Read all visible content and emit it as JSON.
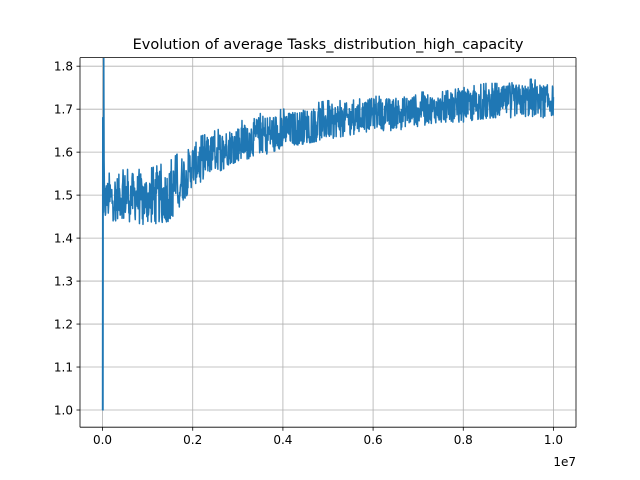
{
  "chart_data": {
    "type": "line",
    "title": "Evolution of average Tasks_distribution_high_capacity",
    "xlabel": "",
    "ylabel": "",
    "x_scale_note": "1e7",
    "xlim": [
      -0.05,
      1.05
    ],
    "ylim": [
      0.96,
      1.82
    ],
    "x_ticks": [
      0.0,
      0.2,
      0.4,
      0.6,
      0.8,
      1.0
    ],
    "x_tick_labels": [
      "0.0",
      "0.2",
      "0.4",
      "0.6",
      "0.8",
      "1.0"
    ],
    "y_ticks": [
      1.0,
      1.1,
      1.2,
      1.3,
      1.4,
      1.5,
      1.6,
      1.7,
      1.8
    ],
    "y_tick_labels": [
      "1.0",
      "1.1",
      "1.2",
      "1.3",
      "1.4",
      "1.5",
      "1.6",
      "1.7",
      "1.8"
    ],
    "grid": true,
    "line_color": "#1f77b4",
    "series": [
      {
        "name": "",
        "x": [
          0.0,
          0.002,
          0.004,
          0.01,
          0.05,
          0.1,
          0.15,
          0.2,
          0.25,
          0.3,
          0.35,
          0.4,
          0.45,
          0.5,
          0.55,
          0.6,
          0.65,
          0.7,
          0.75,
          0.8,
          0.85,
          0.9,
          0.95,
          1.0
        ],
        "y_mean": [
          1.0,
          1.68,
          1.48,
          1.49,
          1.5,
          1.49,
          1.5,
          1.57,
          1.6,
          1.62,
          1.64,
          1.65,
          1.66,
          1.67,
          1.68,
          1.69,
          1.69,
          1.7,
          1.7,
          1.71,
          1.71,
          1.72,
          1.72,
          1.72
        ],
        "y_min": [
          1.0,
          1.0,
          1.44,
          1.44,
          1.44,
          1.43,
          1.44,
          1.52,
          1.55,
          1.58,
          1.59,
          1.61,
          1.62,
          1.63,
          1.64,
          1.65,
          1.65,
          1.66,
          1.67,
          1.67,
          1.68,
          1.68,
          1.68,
          1.68
        ],
        "y_max": [
          1.0,
          1.68,
          1.55,
          1.55,
          1.56,
          1.56,
          1.58,
          1.63,
          1.65,
          1.67,
          1.69,
          1.7,
          1.71,
          1.72,
          1.72,
          1.73,
          1.73,
          1.74,
          1.74,
          1.75,
          1.76,
          1.76,
          1.77,
          1.76
        ]
      }
    ]
  }
}
